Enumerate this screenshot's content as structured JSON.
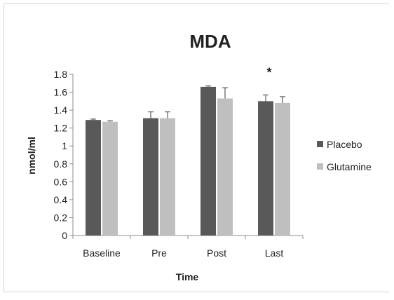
{
  "chart_data": {
    "type": "bar",
    "title": "MDA",
    "xlabel": "Time",
    "ylabel": "nmol/ml",
    "categories": [
      "Baseline",
      "Pre",
      "Post",
      "Last"
    ],
    "ylim": [
      0,
      1.8
    ],
    "yticks": [
      "0",
      "0.2",
      "0.4",
      "0.6",
      "0.8",
      "1",
      "1.2",
      "1.4",
      "1.6",
      "1.8"
    ],
    "grid": false,
    "legend_position": "right",
    "series": [
      {
        "name": "Placebo",
        "color": "#595959",
        "values": [
          1.29,
          1.31,
          1.66,
          1.5
        ],
        "errors": [
          0.01,
          0.07,
          0.01,
          0.07
        ]
      },
      {
        "name": "Glutamine",
        "color": "#bfbfbf",
        "values": [
          1.27,
          1.31,
          1.53,
          1.48
        ],
        "errors": [
          0.01,
          0.07,
          0.12,
          0.07
        ]
      }
    ],
    "annotations": [
      {
        "category": "Last",
        "text": "*"
      }
    ]
  }
}
